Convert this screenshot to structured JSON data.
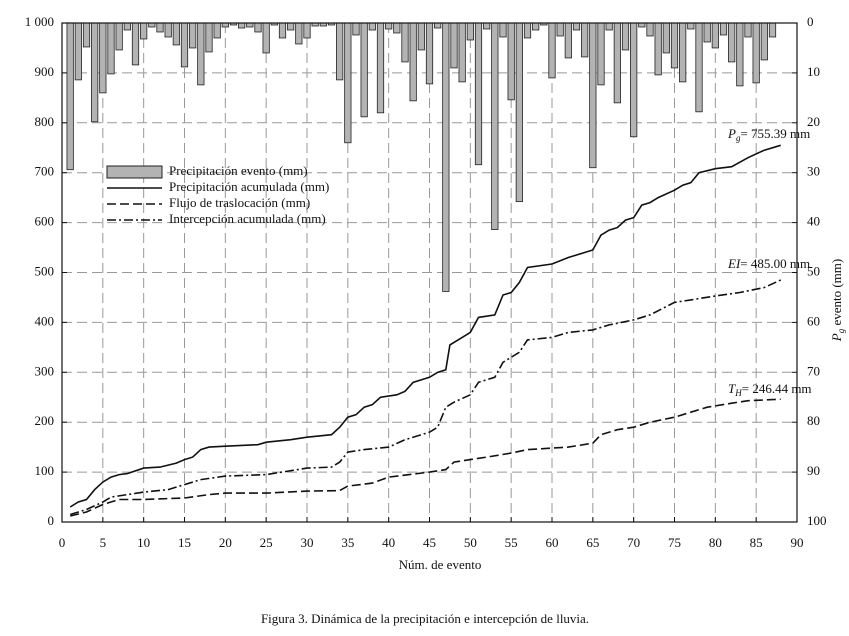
{
  "chart_data": {
    "type": "bar_line",
    "xlabel": "Núm. de evento",
    "y2label": {
      "main": "P",
      "sub": "g",
      "rest": " evento (mm)"
    },
    "caption": "Figura 3. Dinámica de la precipitación e intercepción de lluvia.",
    "xlim": [
      0,
      90
    ],
    "xticks": [
      0,
      5,
      10,
      15,
      20,
      25,
      30,
      35,
      40,
      45,
      50,
      55,
      60,
      65,
      70,
      75,
      80,
      85,
      90
    ],
    "ylim": [
      0,
      1000
    ],
    "yticks": [
      0,
      100,
      200,
      300,
      400,
      500,
      600,
      700,
      800,
      900,
      {
        "value": 1000,
        "label": "1 000"
      }
    ],
    "y2lim": [
      100,
      0
    ],
    "y2ticks": [
      0,
      10,
      20,
      30,
      40,
      50,
      60,
      70,
      80,
      90,
      100
    ],
    "grid": true,
    "legend": "upper left",
    "series": [
      {
        "name": "Precipitación evento (mm)",
        "type": "bar",
        "axis": "y2",
        "color": "#b3b3b3",
        "x": [
          1,
          2,
          3,
          4,
          5,
          6,
          7,
          8,
          9,
          10,
          11,
          12,
          13,
          14,
          15,
          16,
          17,
          18,
          19,
          20,
          21,
          22,
          23,
          24,
          25,
          26,
          27,
          28,
          29,
          30,
          31,
          32,
          33,
          34,
          35,
          36,
          37,
          38,
          39,
          40,
          41,
          42,
          43,
          44,
          45,
          46,
          47,
          48,
          49,
          50,
          51,
          52,
          53,
          54,
          55,
          56,
          57,
          58,
          59,
          60,
          61,
          62,
          63,
          64,
          65,
          66,
          67,
          68,
          69,
          70,
          71,
          72,
          73,
          74,
          75,
          76,
          77,
          78,
          79,
          80,
          81,
          82,
          83,
          84,
          85,
          86,
          87
        ],
        "values": [
          29.4,
          11.4,
          4.8,
          19.8,
          14,
          10.2,
          5.4,
          1.4,
          8.4,
          3.2,
          0.8,
          1.8,
          2.8,
          4.4,
          8.8,
          5,
          12.4,
          5.8,
          3,
          0.8,
          0.4,
          1,
          0.8,
          1.8,
          6,
          0.4,
          3,
          1.4,
          4.2,
          3,
          0.6,
          0.6,
          0.4,
          11.4,
          24,
          2.4,
          18.8,
          1.4,
          18,
          1.2,
          2,
          7.8,
          15.6,
          5.4,
          12.2,
          1,
          53.8,
          9,
          11.8,
          3.4,
          28.4,
          1.2,
          41.4,
          2.8,
          15.4,
          35.8,
          3,
          1.4,
          0.4,
          11,
          2.6,
          7,
          1.4,
          6.8,
          29,
          12.4,
          1.4,
          16,
          5.4,
          22.8,
          0.8,
          2.6,
          10.4,
          6,
          9,
          11.8,
          1.2,
          17.8,
          3.8,
          5,
          2.4,
          7.8,
          12.6,
          2.8,
          12,
          7.4,
          2.8
        ]
      },
      {
        "name": "Precipitación acumulada (mm)",
        "type": "line",
        "style": "solid",
        "color": "#111111",
        "x": [
          1,
          2,
          3,
          4,
          5,
          6,
          7,
          8,
          10,
          12,
          14,
          15,
          16,
          17,
          18,
          20,
          24,
          25,
          28,
          30,
          33,
          34,
          35,
          36,
          37,
          38,
          39,
          41,
          42,
          43,
          45,
          46,
          47,
          47.5,
          49,
          50,
          51,
          53,
          54,
          55,
          56,
          57,
          60,
          62,
          63,
          65,
          66,
          67,
          68,
          69,
          70,
          71,
          72,
          73,
          75,
          76,
          77,
          78,
          80,
          82,
          84,
          86,
          88
        ],
        "y": [
          30,
          40,
          45,
          65,
          80,
          90,
          95,
          97,
          108,
          110,
          118,
          125,
          130,
          145,
          150,
          152,
          155,
          160,
          165,
          170,
          175,
          190,
          210,
          215,
          230,
          235,
          250,
          255,
          262,
          280,
          290,
          300,
          305,
          355,
          370,
          380,
          410,
          415,
          455,
          460,
          480,
          510,
          517,
          530,
          535,
          545,
          575,
          585,
          590,
          605,
          610,
          635,
          640,
          650,
          665,
          675,
          680,
          700,
          708,
          712,
          730,
          745,
          755
        ]
      },
      {
        "name": "Flujo de traslocación (mm)",
        "type": "line",
        "style": "dashed",
        "color": "#111111",
        "x": [
          1,
          3,
          5,
          7,
          10,
          15,
          18,
          20,
          25,
          30,
          34,
          35,
          38,
          40,
          45,
          47,
          48,
          50,
          52,
          55,
          57,
          60,
          62,
          65,
          66,
          68,
          70,
          72,
          75,
          77,
          79,
          82,
          84,
          88
        ],
        "y": [
          12,
          20,
          35,
          45,
          45,
          48,
          55,
          58,
          58,
          62,
          63,
          72,
          78,
          90,
          100,
          105,
          120,
          125,
          130,
          138,
          145,
          148,
          150,
          158,
          175,
          185,
          190,
          200,
          210,
          220,
          230,
          238,
          243,
          246
        ]
      },
      {
        "name": "Intercepción acumulada (mm)",
        "type": "line",
        "style": "dashdot",
        "color": "#111111",
        "x": [
          1,
          3,
          5,
          6,
          8,
          10,
          13,
          15,
          17,
          20,
          25,
          30,
          33,
          34,
          35,
          37,
          40,
          42,
          45,
          46,
          47,
          48,
          50,
          51,
          53,
          54,
          56,
          57,
          60,
          62,
          65,
          67,
          70,
          72,
          75,
          77,
          80,
          83,
          86,
          88
        ],
        "y": [
          15,
          25,
          40,
          50,
          55,
          60,
          65,
          75,
          85,
          92,
          95,
          108,
          110,
          120,
          140,
          145,
          150,
          165,
          180,
          190,
          230,
          240,
          255,
          280,
          290,
          320,
          340,
          365,
          370,
          380,
          385,
          395,
          405,
          415,
          440,
          445,
          453,
          460,
          470,
          485
        ]
      }
    ],
    "annotations": [
      {
        "main": "P",
        "sub": "g",
        "rest": "= 755.39 mm"
      },
      {
        "main": "EI",
        "sub": "",
        "rest": "= 485.00 mm"
      },
      {
        "main": "T",
        "sub": "H",
        "rest": "= 246.44 mm"
      }
    ]
  }
}
